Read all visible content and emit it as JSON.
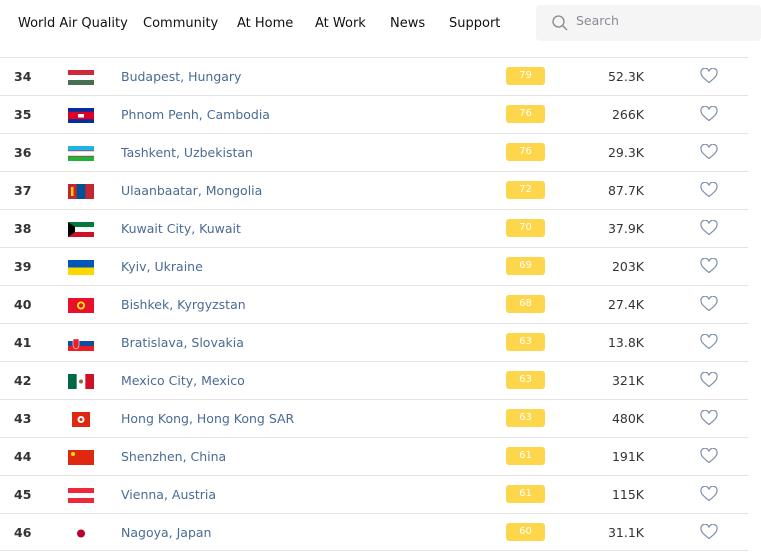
{
  "nav": {
    "items": [
      "World Air Quality",
      "Community",
      "At Home",
      "At Work",
      "News",
      "Support"
    ],
    "search_placeholder": "Search"
  },
  "colors": {
    "aqi_badge": "#fdd64b",
    "city_link": "#4a6b94"
  },
  "rows": [
    {
      "rank": "34",
      "flag": "hungary",
      "city": "Budapest, Hungary",
      "aqi": "79",
      "followers": "52.3K"
    },
    {
      "rank": "35",
      "flag": "cambodia",
      "city": "Phnom Penh, Cambodia",
      "aqi": "76",
      "followers": "266K"
    },
    {
      "rank": "36",
      "flag": "uzbekistan",
      "city": "Tashkent, Uzbekistan",
      "aqi": "76",
      "followers": "29.3K"
    },
    {
      "rank": "37",
      "flag": "mongolia",
      "city": "Ulaanbaatar, Mongolia",
      "aqi": "72",
      "followers": "87.7K"
    },
    {
      "rank": "38",
      "flag": "kuwait",
      "city": "Kuwait City, Kuwait",
      "aqi": "70",
      "followers": "37.9K"
    },
    {
      "rank": "39",
      "flag": "ukraine",
      "city": "Kyiv, Ukraine",
      "aqi": "69",
      "followers": "203K"
    },
    {
      "rank": "40",
      "flag": "kyrgyzstan",
      "city": "Bishkek, Kyrgyzstan",
      "aqi": "68",
      "followers": "27.4K"
    },
    {
      "rank": "41",
      "flag": "slovakia",
      "city": "Bratislava, Slovakia",
      "aqi": "63",
      "followers": "13.8K"
    },
    {
      "rank": "42",
      "flag": "mexico",
      "city": "Mexico City, Mexico",
      "aqi": "63",
      "followers": "321K"
    },
    {
      "rank": "43",
      "flag": "hong-kong",
      "city": "Hong Kong, Hong Kong SAR",
      "aqi": "63",
      "followers": "480K"
    },
    {
      "rank": "44",
      "flag": "china",
      "city": "Shenzhen, China",
      "aqi": "61",
      "followers": "191K"
    },
    {
      "rank": "45",
      "flag": "austria",
      "city": "Vienna, Austria",
      "aqi": "61",
      "followers": "115K"
    },
    {
      "rank": "46",
      "flag": "japan",
      "city": "Nagoya, Japan",
      "aqi": "60",
      "followers": "31.1K"
    }
  ]
}
